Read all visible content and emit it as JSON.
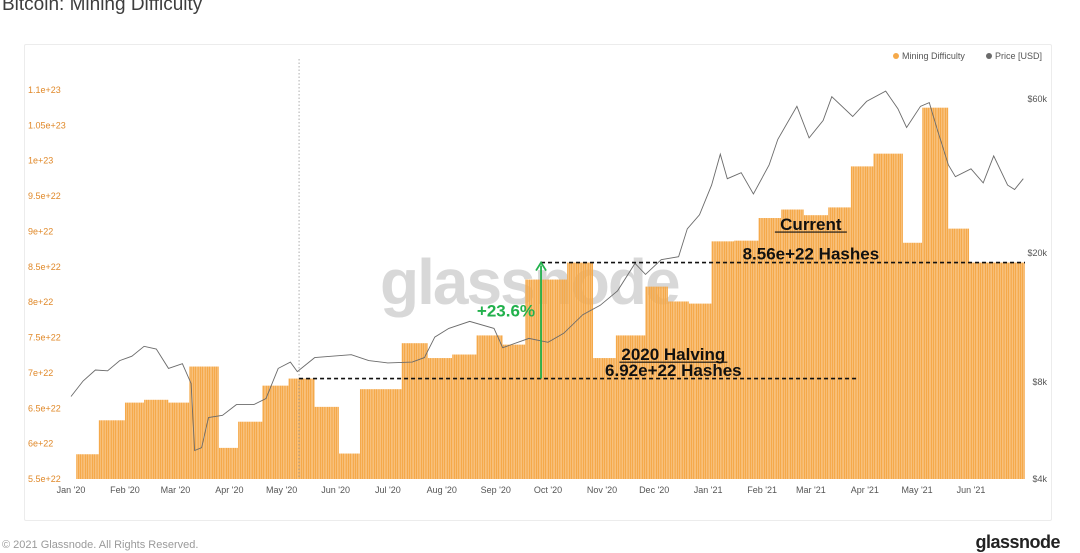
{
  "page": {
    "title": "Bitcoin: Mining Difficulty"
  },
  "footer": {
    "copyright": "© 2021 Glassnode. All Rights Reserved.",
    "brand": "glassnode"
  },
  "watermark": "glassnode",
  "colors": {
    "difficulty": "#f5a94a",
    "difficulty_edge": "#ffffff",
    "price": "#6b6b6b",
    "green": "#22b14c",
    "left_axis": "#e0892a"
  },
  "chart_data": {
    "type": "bar",
    "title": "Bitcoin: Mining Difficulty",
    "legend": {
      "placement": "top-right",
      "entries": [
        {
          "name": "Mining Difficulty",
          "color": "#f5a94a"
        },
        {
          "name": "Price [USD]",
          "color": "#6b6b6b"
        }
      ]
    },
    "x_range": [
      "2020-01-01",
      "2021-07-02"
    ],
    "x_ticks": [
      {
        "date": "2020-01-01",
        "label": "Jan '20"
      },
      {
        "date": "2020-02-01",
        "label": "Feb '20"
      },
      {
        "date": "2020-03-01",
        "label": "Mar '20"
      },
      {
        "date": "2020-04-01",
        "label": "Apr '20"
      },
      {
        "date": "2020-05-01",
        "label": "May '20"
      },
      {
        "date": "2020-06-01",
        "label": "Jun '20"
      },
      {
        "date": "2020-07-01",
        "label": "Jul '20"
      },
      {
        "date": "2020-08-01",
        "label": "Aug '20"
      },
      {
        "date": "2020-09-01",
        "label": "Sep '20"
      },
      {
        "date": "2020-10-01",
        "label": "Oct '20"
      },
      {
        "date": "2020-11-01",
        "label": "Nov '20"
      },
      {
        "date": "2020-12-01",
        "label": "Dec '20"
      },
      {
        "date": "2021-01-01",
        "label": "Jan '21"
      },
      {
        "date": "2021-02-01",
        "label": "Feb '21"
      },
      {
        "date": "2021-03-01",
        "label": "Mar '21"
      },
      {
        "date": "2021-04-01",
        "label": "Apr '21"
      },
      {
        "date": "2021-05-01",
        "label": "May '21"
      },
      {
        "date": "2021-06-01",
        "label": "Jun '21"
      }
    ],
    "y_left": {
      "label": "",
      "ylim": [
        5.5e+22,
        1.1e+23
      ],
      "ticks": [
        {
          "v": 5.5e+22,
          "label": "5.5e+22"
        },
        {
          "v": 6e+22,
          "label": "6e+22"
        },
        {
          "v": 6.5e+22,
          "label": "6.5e+22"
        },
        {
          "v": 7e+22,
          "label": "7e+22"
        },
        {
          "v": 7.5e+22,
          "label": "7.5e+22"
        },
        {
          "v": 8e+22,
          "label": "8e+22"
        },
        {
          "v": 8.5e+22,
          "label": "8.5e+22"
        },
        {
          "v": 9e+22,
          "label": "9e+22"
        },
        {
          "v": 9.5e+22,
          "label": "9.5e+22"
        },
        {
          "v": 1e+23,
          "label": "1e+23"
        },
        {
          "v": 1.05e+23,
          "label": "1.05e+23"
        },
        {
          "v": 1.1e+23,
          "label": "1.1e+23"
        }
      ]
    },
    "y_right": {
      "label": "",
      "scale": "log",
      "ylim": [
        4000,
        64000
      ],
      "ticks": [
        {
          "v": 4000,
          "label": "$4k"
        },
        {
          "v": 8000,
          "label": "$8k"
        },
        {
          "v": 20000,
          "label": "$20k"
        },
        {
          "v": 60000,
          "label": "$60k"
        }
      ]
    },
    "series": [
      {
        "name": "Mining Difficulty",
        "type": "step-bar",
        "epochs": [
          {
            "start": "2020-01-04",
            "value": 5.85e+22
          },
          {
            "start": "2020-01-17",
            "value": 6.33e+22
          },
          {
            "start": "2020-02-01",
            "value": 6.58e+22
          },
          {
            "start": "2020-02-12",
            "value": 6.62e+22
          },
          {
            "start": "2020-02-26",
            "value": 6.58e+22
          },
          {
            "start": "2020-03-09",
            "value": 7.09e+22
          },
          {
            "start": "2020-03-26",
            "value": 5.94e+22
          },
          {
            "start": "2020-04-06",
            "value": 6.31e+22
          },
          {
            "start": "2020-04-20",
            "value": 6.82e+22
          },
          {
            "start": "2020-05-05",
            "value": 6.92e+22
          },
          {
            "start": "2020-05-20",
            "value": 6.52e+22
          },
          {
            "start": "2020-06-03",
            "value": 5.86e+22
          },
          {
            "start": "2020-06-15",
            "value": 6.77e+22
          },
          {
            "start": "2020-07-09",
            "value": 7.42e+22
          },
          {
            "start": "2020-07-24",
            "value": 7.21e+22
          },
          {
            "start": "2020-08-07",
            "value": 7.26e+22
          },
          {
            "start": "2020-08-21",
            "value": 7.53e+22
          },
          {
            "start": "2020-09-05",
            "value": 7.4e+22
          },
          {
            "start": "2020-09-18",
            "value": 8.32e+22
          },
          {
            "start": "2020-10-12",
            "value": 8.56e+22
          },
          {
            "start": "2020-10-27",
            "value": 7.21e+22
          },
          {
            "start": "2020-11-09",
            "value": 7.53e+22
          },
          {
            "start": "2020-11-26",
            "value": 8.22e+22
          },
          {
            "start": "2020-12-09",
            "value": 8.01e+22
          },
          {
            "start": "2020-12-21",
            "value": 7.98e+22
          },
          {
            "start": "2021-01-03",
            "value": 8.86e+22
          },
          {
            "start": "2021-01-16",
            "value": 8.87e+22
          },
          {
            "start": "2021-01-30",
            "value": 9.19e+22
          },
          {
            "start": "2021-02-12",
            "value": 9.31e+22
          },
          {
            "start": "2021-02-25",
            "value": 9.23e+22
          },
          {
            "start": "2021-03-11",
            "value": 9.34e+22
          },
          {
            "start": "2021-03-24",
            "value": 9.92e+22
          },
          {
            "start": "2021-04-06",
            "value": 1.01e+23
          },
          {
            "start": "2021-04-23",
            "value": 8.84e+22
          },
          {
            "start": "2021-05-04",
            "value": 1.075e+23
          },
          {
            "start": "2021-05-19",
            "value": 9.04e+22
          },
          {
            "start": "2021-05-31",
            "value": 8.56e+22
          },
          {
            "start": "2021-07-02",
            "value": 8.56e+22
          }
        ]
      },
      {
        "name": "Price [USD]",
        "type": "line",
        "axis": "right",
        "points": [
          [
            "2020-01-01",
            7200
          ],
          [
            "2020-01-08",
            8050
          ],
          [
            "2020-01-15",
            8700
          ],
          [
            "2020-01-22",
            8650
          ],
          [
            "2020-01-29",
            9300
          ],
          [
            "2020-02-05",
            9600
          ],
          [
            "2020-02-12",
            10300
          ],
          [
            "2020-02-19",
            10100
          ],
          [
            "2020-02-26",
            8800
          ],
          [
            "2020-03-05",
            9100
          ],
          [
            "2020-03-10",
            7900
          ],
          [
            "2020-03-12",
            4900
          ],
          [
            "2020-03-16",
            5000
          ],
          [
            "2020-03-20",
            6200
          ],
          [
            "2020-03-28",
            6300
          ],
          [
            "2020-04-05",
            6800
          ],
          [
            "2020-04-15",
            6800
          ],
          [
            "2020-04-22",
            7100
          ],
          [
            "2020-04-29",
            8800
          ],
          [
            "2020-05-06",
            9200
          ],
          [
            "2020-05-10",
            8600
          ],
          [
            "2020-05-20",
            9500
          ],
          [
            "2020-05-30",
            9600
          ],
          [
            "2020-06-10",
            9700
          ],
          [
            "2020-06-20",
            9300
          ],
          [
            "2020-07-01",
            9150
          ],
          [
            "2020-07-15",
            9200
          ],
          [
            "2020-07-22",
            9500
          ],
          [
            "2020-07-28",
            11000
          ],
          [
            "2020-08-05",
            11700
          ],
          [
            "2020-08-17",
            12300
          ],
          [
            "2020-08-31",
            11700
          ],
          [
            "2020-09-05",
            10200
          ],
          [
            "2020-09-20",
            10900
          ],
          [
            "2020-10-01",
            10600
          ],
          [
            "2020-10-10",
            11300
          ],
          [
            "2020-10-21",
            12900
          ],
          [
            "2020-10-31",
            13800
          ],
          [
            "2020-11-10",
            15300
          ],
          [
            "2020-11-20",
            18600
          ],
          [
            "2020-11-26",
            17200
          ],
          [
            "2020-12-05",
            19100
          ],
          [
            "2020-12-15",
            19500
          ],
          [
            "2020-12-20",
            23800
          ],
          [
            "2020-12-27",
            26300
          ],
          [
            "2021-01-03",
            32500
          ],
          [
            "2021-01-08",
            40500
          ],
          [
            "2021-01-12",
            34000
          ],
          [
            "2021-01-20",
            35500
          ],
          [
            "2021-01-27",
            30500
          ],
          [
            "2021-02-05",
            37500
          ],
          [
            "2021-02-10",
            45000
          ],
          [
            "2021-02-21",
            57000
          ],
          [
            "2021-02-28",
            45500
          ],
          [
            "2021-03-08",
            51500
          ],
          [
            "2021-03-13",
            61000
          ],
          [
            "2021-03-25",
            53000
          ],
          [
            "2021-04-02",
            59000
          ],
          [
            "2021-04-13",
            63500
          ],
          [
            "2021-04-20",
            56000
          ],
          [
            "2021-04-25",
            49000
          ],
          [
            "2021-05-03",
            57000
          ],
          [
            "2021-05-08",
            58500
          ],
          [
            "2021-05-12",
            49500
          ],
          [
            "2021-05-19",
            37500
          ],
          [
            "2021-05-23",
            34500
          ],
          [
            "2021-06-01",
            36500
          ],
          [
            "2021-06-08",
            33000
          ],
          [
            "2021-06-14",
            40000
          ],
          [
            "2021-06-22",
            32500
          ],
          [
            "2021-06-26",
            31500
          ],
          [
            "2021-07-01",
            34000
          ]
        ]
      }
    ],
    "reference_lines": [
      {
        "kind": "vertical",
        "date": "2020-05-11",
        "style": "dotted"
      },
      {
        "kind": "horizontal",
        "value": 6.92e+22,
        "from": "2020-05-11",
        "to": "2021-03-27",
        "style": "dashed"
      },
      {
        "kind": "horizontal",
        "value": 8.56e+22,
        "from": "2020-09-27",
        "to": "2021-07-02",
        "style": "dashed"
      }
    ],
    "annotations": {
      "increase_arrow": {
        "date": "2020-09-27",
        "from_value": 6.92e+22,
        "to_value": 8.56e+22,
        "label": "+23.6%"
      },
      "halving": {
        "title": "2020 Halving",
        "value": "6.92e+22 Hashes"
      },
      "current": {
        "title": "Current",
        "value": "8.56e+22 Hashes"
      }
    }
  }
}
